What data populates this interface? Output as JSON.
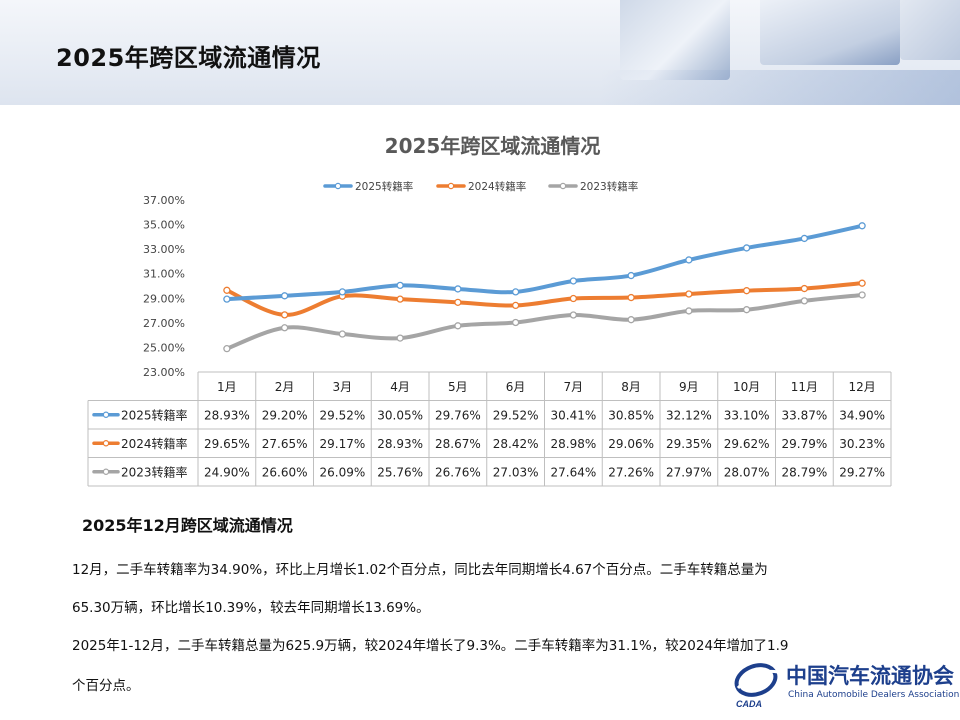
{
  "header": {
    "title": "2025年跨区域流通情况"
  },
  "chart_data": {
    "type": "line",
    "title": "2025年跨区域流通情况",
    "categories": [
      "1月",
      "2月",
      "3月",
      "4月",
      "5月",
      "6月",
      "7月",
      "8月",
      "9月",
      "10月",
      "11月",
      "12月"
    ],
    "series": [
      {
        "name": "2025转籍率",
        "color": "#5b9bd5",
        "values": [
          28.93,
          29.2,
          29.52,
          30.05,
          29.76,
          29.52,
          30.41,
          30.85,
          32.12,
          33.1,
          33.87,
          34.9
        ],
        "labels": [
          "28.93%",
          "29.20%",
          "29.52%",
          "30.05%",
          "29.76%",
          "29.52%",
          "30.41%",
          "30.85%",
          "32.12%",
          "33.10%",
          "33.87%",
          "34.90%"
        ]
      },
      {
        "name": "2024转籍率",
        "color": "#ed7d31",
        "values": [
          29.65,
          27.65,
          29.17,
          28.93,
          28.67,
          28.42,
          28.98,
          29.06,
          29.35,
          29.62,
          29.79,
          30.23
        ],
        "labels": [
          "29.65%",
          "27.65%",
          "29.17%",
          "28.93%",
          "28.67%",
          "28.42%",
          "28.98%",
          "29.06%",
          "29.35%",
          "29.62%",
          "29.79%",
          "30.23%"
        ]
      },
      {
        "name": "2023转籍率",
        "color": "#a5a5a5",
        "values": [
          24.9,
          26.6,
          26.09,
          25.76,
          26.76,
          27.03,
          27.64,
          27.26,
          27.97,
          28.07,
          28.79,
          29.27
        ],
        "labels": [
          "24.90%",
          "26.60%",
          "26.09%",
          "25.76%",
          "26.76%",
          "27.03%",
          "27.64%",
          "27.26%",
          "27.97%",
          "28.07%",
          "28.79%",
          "29.27%"
        ]
      }
    ],
    "ylim": [
      23,
      37
    ],
    "yticks": [
      "23.00%",
      "25.00%",
      "27.00%",
      "29.00%",
      "31.00%",
      "33.00%",
      "35.00%",
      "37.00%"
    ],
    "legend": "top",
    "data_table": true
  },
  "section": {
    "subtitle": "2025年12月跨区域流通情况",
    "para1a": "12月，二手车转籍率为34.90%，环比上月增长1.02个百分点，同比去年同期增长4.67个百分点。二手车转籍总量为",
    "para1b": "65.30万辆，环比增长10.39%，较去年同期增长13.69%。",
    "para2a": "2025年1-12月，二手车转籍总量为625.9万辆，较2024年增长了9.3%。二手车转籍率为31.1%，较2024年增加了1.9",
    "para2b": "个百分点。"
  },
  "logo": {
    "cn": "中国汽车流通协会",
    "en": "China Automobile Dealers Association",
    "abbr": "CADA"
  }
}
